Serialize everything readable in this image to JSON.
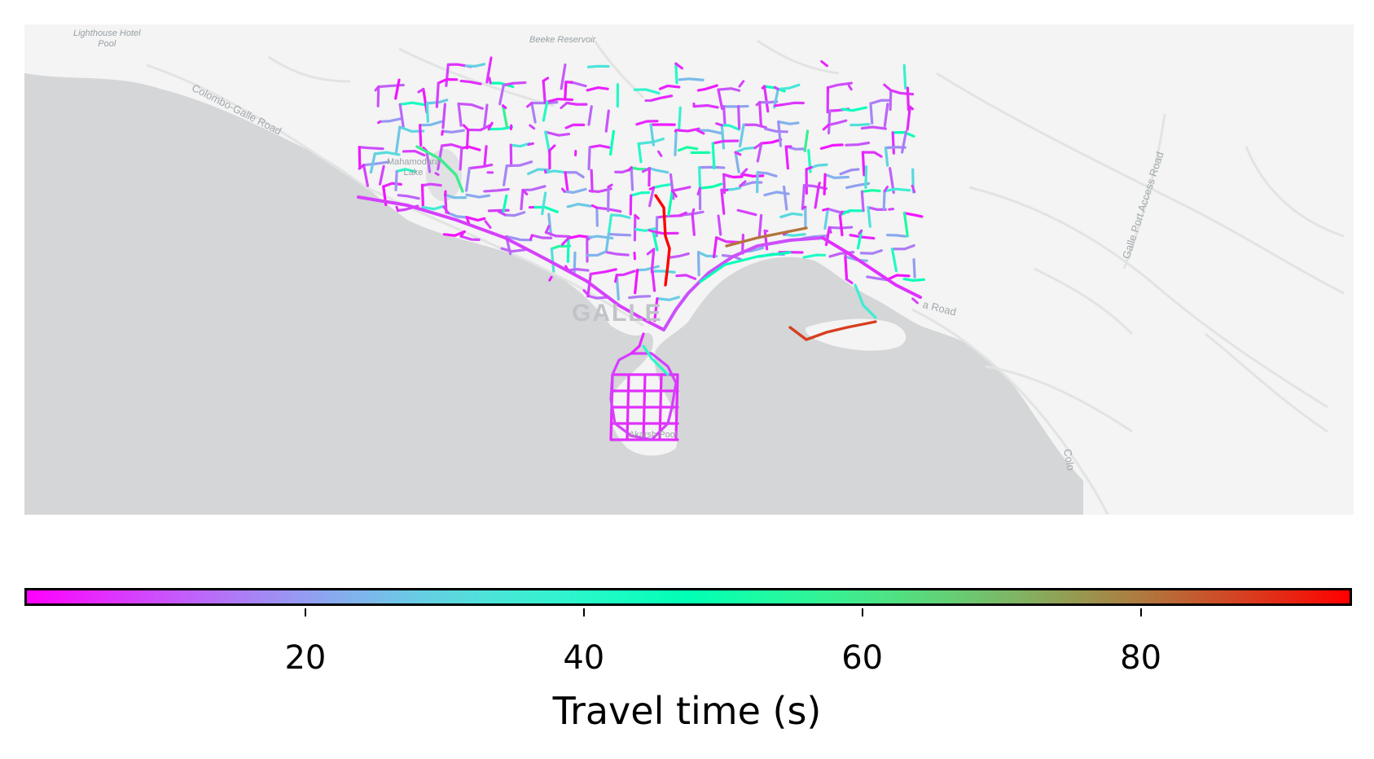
{
  "map": {
    "labels": {
      "lighthouse": "Lighthouse Hotel Pool",
      "lighthouse_line1": "Lighthouse Hotel",
      "lighthouse_line2": "Pool",
      "beeke": "Beeke Reservoir",
      "colombo_galle_road": "Colombo-Galle Road",
      "mahamodara_line1": "Mahamodara",
      "mahamodara_line2": "Lake",
      "galle_port_access": "Galle Port Access Road",
      "town": "GALLE",
      "pool": "Akarsh Pool",
      "road_right": "a Road",
      "colo": "Colo"
    },
    "colors": {
      "sea": "#d4d6d8",
      "land": "#f3f4f3",
      "roads_bg": "#e5e7e6"
    }
  },
  "colorbar": {
    "colormap": "rainbow",
    "min": 0,
    "max": 95,
    "ticks": [
      {
        "value": 20,
        "label": "20"
      },
      {
        "value": 40,
        "label": "40"
      },
      {
        "value": 60,
        "label": "60"
      },
      {
        "value": 80,
        "label": "80"
      }
    ],
    "title": "Travel time (s)"
  }
}
